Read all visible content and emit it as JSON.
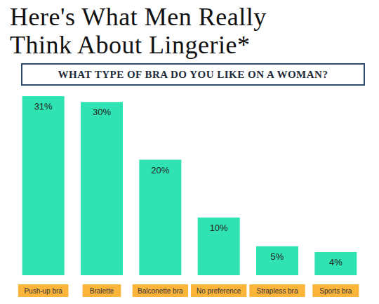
{
  "chart_data": {
    "type": "bar",
    "title": "Here's What Men Really Think About Lingerie*",
    "subtitle": "WHAT TYPE OF BRA DO YOU LIKE ON A WOMAN?",
    "categories": [
      "Push-up bra",
      "Bralette",
      "Balconette bra",
      "No preference",
      "Strapless bra",
      "Sports bra"
    ],
    "values": [
      31,
      30,
      20,
      10,
      5,
      4
    ],
    "value_labels": [
      "31%",
      "30%",
      "20%",
      "10%",
      "5%",
      "4%"
    ],
    "color": "#30e3b2",
    "data_labels": true,
    "tick_labels": "x"
  }
}
